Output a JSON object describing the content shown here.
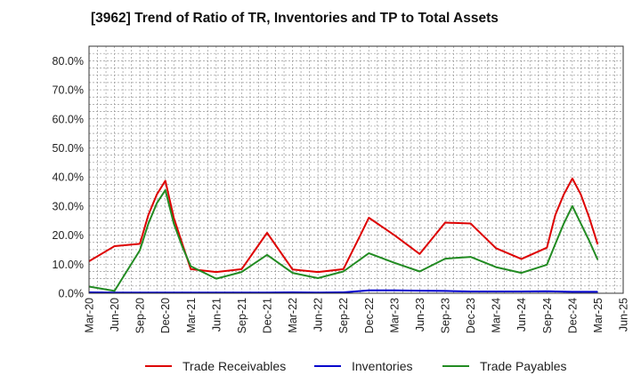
{
  "chart_data": {
    "type": "line",
    "title": "[3962]  Trend of Ratio of TR, Inventories and TP to Total Assets",
    "xlabel": "",
    "ylabel": "",
    "ylim": [
      0,
      0.85
    ],
    "y_ticks": [
      "0.0%",
      "10.0%",
      "20.0%",
      "30.0%",
      "40.0%",
      "50.0%",
      "60.0%",
      "70.0%",
      "80.0%"
    ],
    "x_tick_labels": [
      "Mar-20",
      "Jun-20",
      "Sep-20",
      "Dec-20",
      "Mar-21",
      "Jun-21",
      "Sep-21",
      "Dec-21",
      "Mar-22",
      "Jun-22",
      "Sep-22",
      "Dec-22",
      "Mar-23",
      "Jun-23",
      "Sep-23",
      "Dec-23",
      "Mar-24",
      "Jun-24",
      "Sep-24",
      "Dec-24",
      "Mar-25",
      "Jun-25"
    ],
    "grid": true,
    "legend_position": "bottom",
    "series": [
      {
        "name": "Trade Receivables",
        "color": "#dd0000",
        "points": [
          [
            "Mar-20",
            11.0
          ],
          [
            "Jun-20",
            16.2
          ],
          [
            "Sep-20",
            17.0
          ],
          [
            "Oct-20",
            27.0
          ],
          [
            "Nov-20",
            34.0
          ],
          [
            "Dec-20",
            38.7
          ],
          [
            "Jan-21",
            26.0
          ],
          [
            "Feb-21",
            17.0
          ],
          [
            "Mar-21",
            8.3
          ],
          [
            "Jun-21",
            7.3
          ],
          [
            "Sep-21",
            8.3
          ],
          [
            "Dec-21",
            20.8
          ],
          [
            "Mar-22",
            8.2
          ],
          [
            "Jun-22",
            7.3
          ],
          [
            "Sep-22",
            8.3
          ],
          [
            "Nov-22",
            20.0
          ],
          [
            "Dec-22",
            26.0
          ],
          [
            "Mar-23",
            20.0
          ],
          [
            "Jun-23",
            13.5
          ],
          [
            "Sep-23",
            24.3
          ],
          [
            "Dec-23",
            24.0
          ],
          [
            "Mar-24",
            15.5
          ],
          [
            "Jun-24",
            11.8
          ],
          [
            "Sep-24",
            15.7
          ],
          [
            "Oct-24",
            27.0
          ],
          [
            "Nov-24",
            34.0
          ],
          [
            "Dec-24",
            39.5
          ],
          [
            "Jan-25",
            34.0
          ],
          [
            "Feb-25",
            26.0
          ],
          [
            "Mar-25",
            16.8
          ]
        ]
      },
      {
        "name": "Inventories",
        "color": "#0000cc",
        "points": [
          [
            "Mar-20",
            0.3
          ],
          [
            "Jun-20",
            0.2
          ],
          [
            "Sep-20",
            0.2
          ],
          [
            "Dec-20",
            0.2
          ],
          [
            "Mar-21",
            0.2
          ],
          [
            "Jun-21",
            0.2
          ],
          [
            "Sep-21",
            0.2
          ],
          [
            "Dec-21",
            0.2
          ],
          [
            "Mar-22",
            0.3
          ],
          [
            "Jun-22",
            0.2
          ],
          [
            "Sep-22",
            0.3
          ],
          [
            "Dec-22",
            1.0
          ],
          [
            "Mar-23",
            1.0
          ],
          [
            "Jun-23",
            0.9
          ],
          [
            "Sep-23",
            0.8
          ],
          [
            "Dec-23",
            0.6
          ],
          [
            "Mar-24",
            0.6
          ],
          [
            "Jun-24",
            0.6
          ],
          [
            "Sep-24",
            0.7
          ],
          [
            "Dec-24",
            0.5
          ],
          [
            "Mar-25",
            0.5
          ]
        ]
      },
      {
        "name": "Trade Payables",
        "color": "#228b22",
        "points": [
          [
            "Mar-20",
            2.3
          ],
          [
            "Jun-20",
            0.8
          ],
          [
            "Sep-20",
            14.8
          ],
          [
            "Oct-20",
            24.0
          ],
          [
            "Nov-20",
            31.0
          ],
          [
            "Dec-20",
            35.5
          ],
          [
            "Jan-21",
            24.0
          ],
          [
            "Feb-21",
            16.0
          ],
          [
            "Mar-21",
            9.3
          ],
          [
            "Jun-21",
            5.0
          ],
          [
            "Sep-21",
            7.3
          ],
          [
            "Dec-21",
            13.2
          ],
          [
            "Mar-22",
            7.0
          ],
          [
            "Jun-22",
            5.2
          ],
          [
            "Sep-22",
            7.5
          ],
          [
            "Dec-22",
            13.8
          ],
          [
            "Mar-23",
            10.5
          ],
          [
            "Jun-23",
            7.5
          ],
          [
            "Sep-23",
            11.9
          ],
          [
            "Dec-23",
            12.5
          ],
          [
            "Mar-24",
            9.0
          ],
          [
            "Jun-24",
            7.0
          ],
          [
            "Sep-24",
            9.8
          ],
          [
            "Oct-24",
            17.0
          ],
          [
            "Nov-24",
            24.0
          ],
          [
            "Dec-24",
            30.0
          ],
          [
            "Jan-25",
            24.0
          ],
          [
            "Feb-25",
            18.0
          ],
          [
            "Mar-25",
            11.5
          ]
        ]
      }
    ]
  }
}
